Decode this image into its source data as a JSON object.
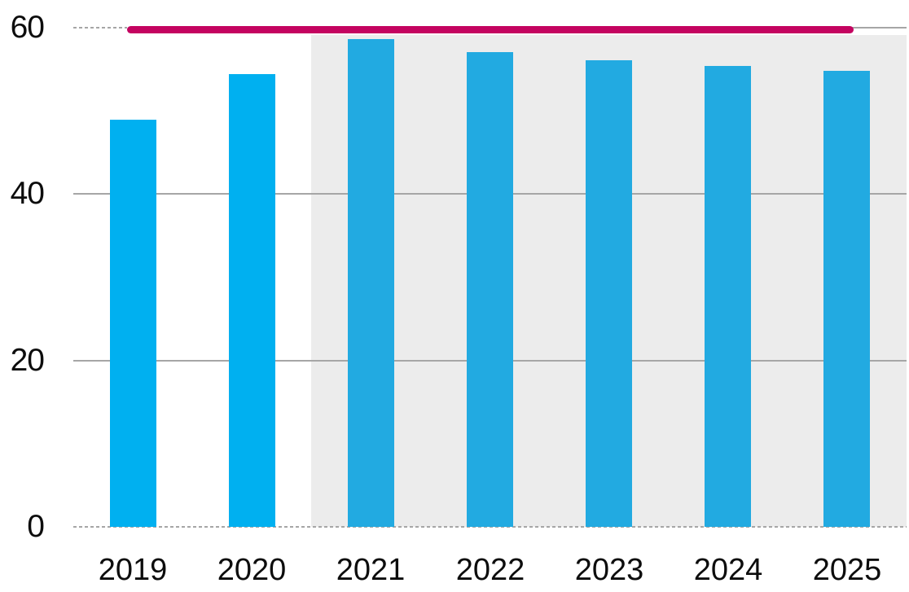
{
  "chart_data": {
    "type": "bar",
    "title": "",
    "xlabel": "",
    "ylabel": "",
    "categories": [
      "2019",
      "2020",
      "2021",
      "2022",
      "2023",
      "2024",
      "2025"
    ],
    "series": [
      {
        "name": "annual-value-bars",
        "type": "bar",
        "values": [
          48.9,
          54.4,
          58.6,
          57.1,
          56.1,
          55.4,
          54.8
        ]
      },
      {
        "name": "cap-line",
        "type": "line",
        "values": [
          60,
          60,
          60,
          60,
          60,
          60,
          60
        ]
      }
    ],
    "ylim": [
      0,
      60
    ],
    "yticks": [
      0,
      20,
      40,
      60
    ],
    "grid": true,
    "legend": false,
    "shaded_region": {
      "start_category": "2021",
      "end_category": "2025"
    },
    "colors": {
      "bar_actual": "#00B0F0",
      "bar_shaded": "#22AAE1",
      "cap_line": "#C40460",
      "shaded_region": "#ECECEC",
      "gridline": "#A6A6A6",
      "axis_label": "#0D0D0D"
    }
  }
}
